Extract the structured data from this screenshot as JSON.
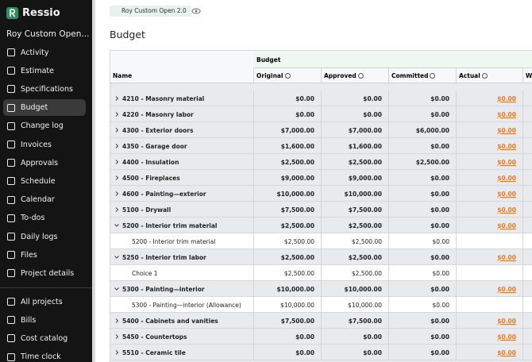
{
  "sidebar": {
    "brand": "Ressio",
    "project": "Roy Custom Open...",
    "nav": [
      {
        "label": "Activity"
      },
      {
        "label": "Estimate"
      },
      {
        "label": "Specifications"
      },
      {
        "label": "Budget",
        "active": true
      },
      {
        "label": "Change log"
      },
      {
        "label": "Invoices"
      },
      {
        "label": "Approvals"
      },
      {
        "label": "Schedule"
      },
      {
        "label": "Calendar"
      },
      {
        "label": "To-dos"
      },
      {
        "label": "Daily logs"
      },
      {
        "label": "Files"
      },
      {
        "label": "Project details"
      }
    ],
    "nav_bottom": [
      {
        "label": "All projects"
      },
      {
        "label": "Bills"
      },
      {
        "label": "Cost catalog"
      },
      {
        "label": "Time clock"
      }
    ]
  },
  "header": {
    "project_tag": "Roy Custom Open 2.0",
    "title": "Budget"
  },
  "table": {
    "group_header": "Budget",
    "columns": [
      "Name",
      "Original",
      "Approved",
      "Committed",
      "Actual",
      "W"
    ],
    "rows": [
      {
        "name": "4210 - Masonry material",
        "cells": [
          "$0.00",
          "$0.00",
          "$0.00",
          "$0.00"
        ]
      },
      {
        "name": "4220 - Masonry labor",
        "cells": [
          "$0.00",
          "$0.00",
          "$0.00",
          "$0.00"
        ]
      },
      {
        "name": "4300 - Exterior doors",
        "cells": [
          "$7,000.00",
          "$7,000.00",
          "$6,000.00",
          "$0.00"
        ]
      },
      {
        "name": "4350 - Garage door",
        "cells": [
          "$1,600.00",
          "$1,600.00",
          "$0.00",
          "$0.00"
        ]
      },
      {
        "name": "4400 - Insulation",
        "cells": [
          "$2,500.00",
          "$2,500.00",
          "$2,500.00",
          "$0.00"
        ]
      },
      {
        "name": "4500 - Fireplaces",
        "cells": [
          "$9,000.00",
          "$9,000.00",
          "$0.00",
          "$0.00"
        ]
      },
      {
        "name": "4600 - Painting—exterior",
        "cells": [
          "$10,000.00",
          "$10,000.00",
          "$0.00",
          "$0.00"
        ]
      },
      {
        "name": "5100 - Drywall",
        "cells": [
          "$7,500.00",
          "$7,500.00",
          "$0.00",
          "$0.00"
        ]
      },
      {
        "name": "5200 - Interior trim material",
        "expanded": true,
        "cells": [
          "$2,500.00",
          "$2,500.00",
          "$0.00",
          "$0.00"
        ]
      },
      {
        "name": "5200 - Interior trim material",
        "child": true,
        "cells": [
          "$2,500.00",
          "$2,500.00",
          "$0.00"
        ]
      },
      {
        "name": "5250 - Interior trim labor",
        "expanded": true,
        "cells": [
          "$2,500.00",
          "$2,500.00",
          "$0.00",
          "$0.00"
        ]
      },
      {
        "name": "Choice 1",
        "child": true,
        "cells": [
          "$2,500.00",
          "$2,500.00",
          "$0.00"
        ]
      },
      {
        "name": "5300 - Painting—interior",
        "expanded": true,
        "cells": [
          "$10,000.00",
          "$10,000.00",
          "$0.00",
          "$0.00"
        ]
      },
      {
        "name": "5300 - Painting—interior (Allowance)",
        "child": true,
        "cells": [
          "$10,000.00",
          "$10,000.00",
          "$0.00"
        ]
      },
      {
        "name": "5400 - Cabinets and vanities",
        "cells": [
          "$7,500.00",
          "$7,500.00",
          "$0.00",
          "$0.00"
        ]
      },
      {
        "name": "5450 - Countertops",
        "cells": [
          "$0.00",
          "$0.00",
          "$0.00",
          "$0.00"
        ]
      },
      {
        "name": "5510 - Ceramic tile",
        "cells": [
          "$0.00",
          "$0.00",
          "$0.00",
          "$0.00"
        ]
      }
    ]
  }
}
